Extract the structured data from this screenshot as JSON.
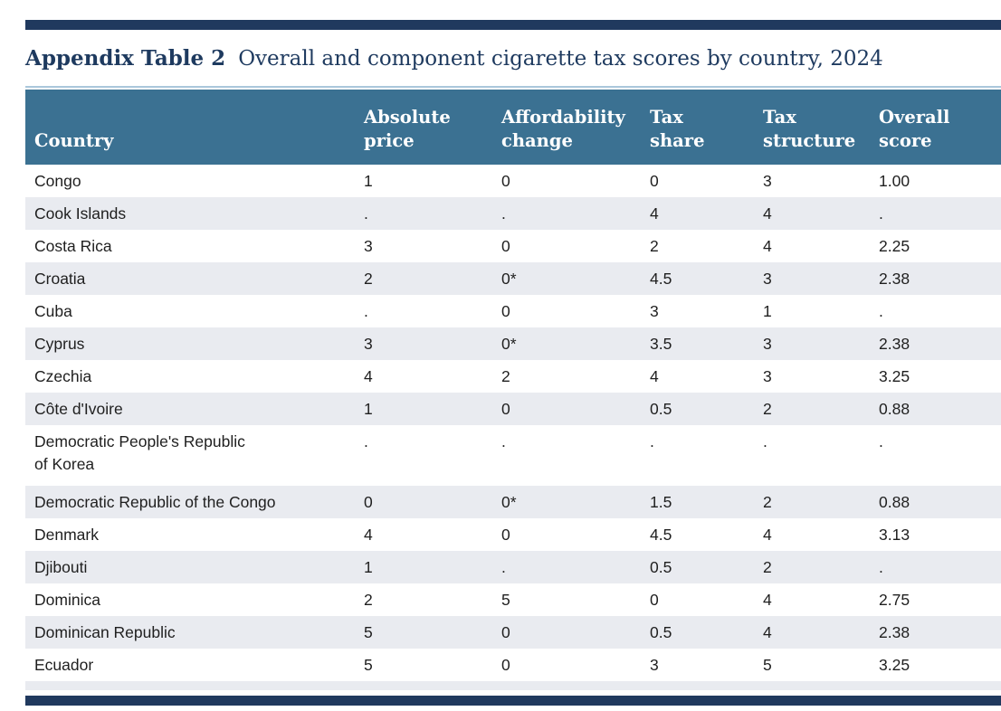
{
  "header": {
    "label": "Appendix Table 2",
    "title": "Overall and component cigarette tax scores by country, 2024"
  },
  "colors": {
    "navy_rule": "#20395e",
    "title_text": "#1e3a5f",
    "light_blue_rule": "#aac7db",
    "table_header_bg": "#3b7192",
    "table_header_text": "#ffffff",
    "row_alt_bg": "#e9ebf0",
    "body_text": "#1f1f1f"
  },
  "table": {
    "columns": [
      "Country",
      "Absolute\nprice",
      "Affordability\nchange",
      "Tax\nshare",
      "Tax\nstructure",
      "Overall\nscore"
    ],
    "rows": [
      {
        "country": "Congo",
        "values": [
          "1",
          "0",
          "0",
          "3",
          "1.00"
        ],
        "tall": false
      },
      {
        "country": "Cook Islands",
        "values": [
          ".",
          ".",
          "4",
          "4",
          "."
        ],
        "tall": false
      },
      {
        "country": "Costa Rica",
        "values": [
          "3",
          "0",
          "2",
          "4",
          "2.25"
        ],
        "tall": false
      },
      {
        "country": "Croatia",
        "values": [
          "2",
          "0*",
          "4.5",
          "3",
          "2.38"
        ],
        "tall": false
      },
      {
        "country": "Cuba",
        "values": [
          ".",
          "0",
          "3",
          "1",
          "."
        ],
        "tall": false
      },
      {
        "country": "Cyprus",
        "values": [
          "3",
          "0*",
          "3.5",
          "3",
          "2.38"
        ],
        "tall": false
      },
      {
        "country": "Czechia",
        "values": [
          "4",
          "2",
          "4",
          "3",
          "3.25"
        ],
        "tall": false
      },
      {
        "country": "Côte d'Ivoire",
        "values": [
          "1",
          "0",
          "0.5",
          "2",
          "0.88"
        ],
        "tall": false
      },
      {
        "country": "Democratic People's Republic\nof Korea",
        "values": [
          ".",
          ".",
          ".",
          ".",
          "."
        ],
        "tall": true
      },
      {
        "country": "Democratic Republic of the Congo",
        "values": [
          "0",
          "0*",
          "1.5",
          "2",
          "0.88"
        ],
        "tall": false
      },
      {
        "country": "Denmark",
        "values": [
          "4",
          "0",
          "4.5",
          "4",
          "3.13"
        ],
        "tall": false
      },
      {
        "country": "Djibouti",
        "values": [
          "1",
          ".",
          "0.5",
          "2",
          "."
        ],
        "tall": false
      },
      {
        "country": "Dominica",
        "values": [
          "2",
          "5",
          "0",
          "4",
          "2.75"
        ],
        "tall": false
      },
      {
        "country": "Dominican Republic",
        "values": [
          "5",
          "0",
          "0.5",
          "4",
          "2.38"
        ],
        "tall": false
      },
      {
        "country": "Ecuador",
        "values": [
          "5",
          "0",
          "3",
          "5",
          "3.25"
        ],
        "tall": false
      }
    ]
  }
}
